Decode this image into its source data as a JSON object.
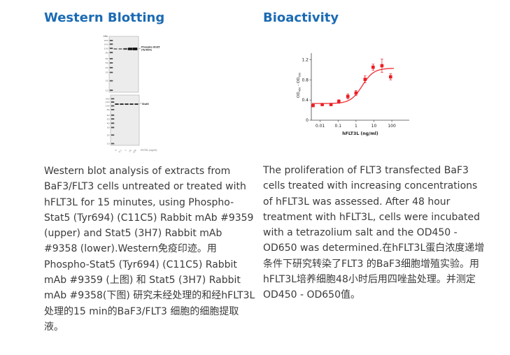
{
  "page": {
    "background": "#ffffff",
    "accent_blue": "#1c6bb4"
  },
  "sections": {
    "western": {
      "title": "Western Blotting",
      "caption": "Western blot analysis of extracts from BaF3/FLT3 cells untreated or treated with hFLT3L for 15 minutes, using Phospho-Stat5 (Tyr694) (C11C5) Rabbit mAb #9359 (upper) and Stat5 (3H7) Rabbit mAb #9358 (lower).Western免疫印迹。用Phospho-Stat5 (Tyr694) (C11C5) Rabbit mAb #9359 (上图) 和 Stat5 (3H7) Rabbit mAb #9358(下图) 研究未经处理的和经hFLT3L处理的15 min的BaF3/FLT3 细胞的细胞提取液。",
      "blot": {
        "kda_label": "kDa",
        "upper_panel": {
          "band_label_line1": "Phospho-Stat5",
          "band_label_line2": "(Tyr694)",
          "mw_markers": [
            "200",
            "140",
            "100",
            "80",
            "60",
            "50",
            "40",
            "30",
            "20",
            "10"
          ],
          "bands": [
            {
              "w": 5.0,
              "t": 1.8,
              "o": 0.55
            },
            {
              "w": 5.0,
              "t": 1.8,
              "o": 0.55
            },
            {
              "w": 5.6,
              "t": 2.2,
              "o": 0.75
            },
            {
              "w": 6.6,
              "t": 3.6,
              "o": 1
            },
            {
              "w": 6.8,
              "t": 3.8,
              "o": 1
            }
          ]
        },
        "lower_panel": {
          "band_label": "Stat5",
          "mw_markers": [
            "200",
            "140",
            "100",
            "80",
            "60",
            "50",
            "40",
            "30",
            "20",
            "10"
          ],
          "bands": [
            {
              "w": 5.4,
              "t": 2,
              "o": 0.85
            },
            {
              "w": 5.4,
              "t": 2,
              "o": 0.85
            },
            {
              "w": 5.4,
              "t": 2,
              "o": 0.85
            },
            {
              "w": 5.4,
              "t": 2,
              "o": 0.85
            },
            {
              "w": 5.4,
              "t": 2,
              "o": 0.85
            }
          ]
        },
        "lane_labels": [
          "0",
          "0.1",
          "1",
          "10",
          "100"
        ],
        "x_axis_label": "hFLT3L (ng/ml)"
      }
    },
    "bio": {
      "title": "Bioactivity",
      "caption": "The proliferation of FLT3 transfected BaF3 cells treated with increasing concentrations of hFLT3L was assessed. After 48 hour treatment with hFLT3L, cells were incubated with a tetrazolium salt and the OD450 - OD650 was determined.在hFLT3L蛋白浓度递增条件下研究转染了FLT3 的BaF3细胞增殖实验。用hFLT3L培养细胞48小时后用四唑盐处理。并测定OD450 - OD650值。"
    }
  },
  "chart_data": {
    "type": "scatter",
    "title": "",
    "xlabel": "hFLT3L (ng/ml)",
    "ylabel_parts": {
      "pre": "OD",
      "sub1": "450",
      "mid": " - OD",
      "sub2": "650"
    },
    "x_scale": "log",
    "x": [
      0.004,
      0.013,
      0.04,
      0.11,
      0.35,
      1.0,
      3.2,
      9,
      28,
      85
    ],
    "y": [
      0.29,
      0.31,
      0.31,
      0.37,
      0.47,
      0.54,
      0.81,
      1.05,
      1.08,
      0.86
    ],
    "yerr": [
      0.02,
      0.015,
      0.015,
      0.035,
      0.05,
      0.05,
      0.07,
      0.06,
      0.13,
      0.06
    ],
    "x_ticks": [
      0.01,
      0.1,
      1,
      10,
      100
    ],
    "x_tick_labels": [
      "0.01",
      "0.1",
      "1",
      "10",
      "100"
    ],
    "y_ticks": [
      0,
      0.4,
      0.8,
      1.2
    ],
    "y_tick_labels": [
      "0",
      "0.4",
      "0.8",
      "1.2"
    ],
    "ylim": [
      0,
      1.3
    ],
    "marker_color": "#ec1c24",
    "curve_color": "#ee2e34",
    "curve_fit": {
      "model": "4PL",
      "bottom": 0.33,
      "top": 1.03,
      "ec50": 2.2,
      "hill": 1.35
    },
    "legend": null,
    "grid": false
  }
}
